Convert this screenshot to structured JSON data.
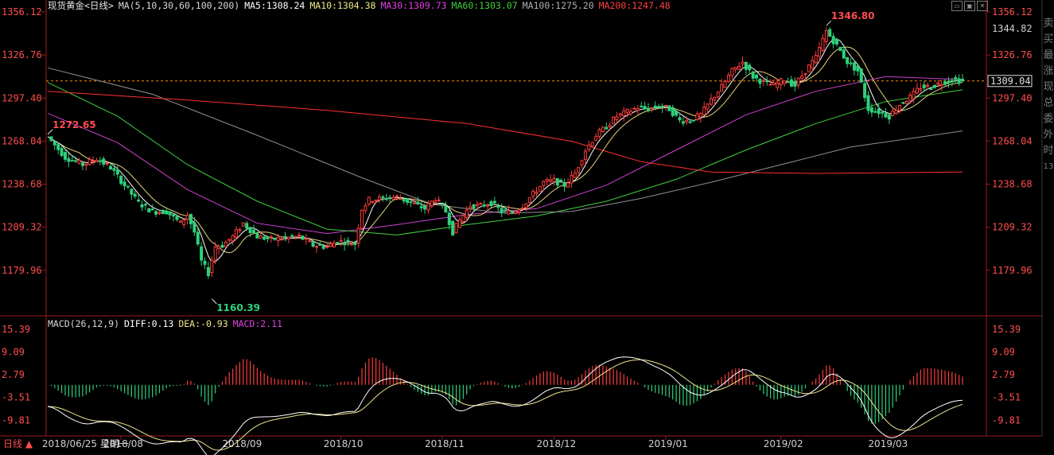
{
  "header": {
    "title": "现货黄金<日线>",
    "ma_label": "MA(5,10,30,60,100,200)",
    "ma_values": [
      {
        "label": "MA5:1308.24",
        "color": "#ffffff"
      },
      {
        "label": "MA10:1304.38",
        "color": "#f0e68c"
      },
      {
        "label": "MA30:1309.73",
        "color": "#e040e0"
      },
      {
        "label": "MA60:1303.07",
        "color": "#40d040"
      },
      {
        "label": "MA100:1275.20",
        "color": "#a0a0a0"
      },
      {
        "label": "MA200:1247.48",
        "color": "#ff4040"
      }
    ]
  },
  "macd_header": {
    "label": "MACD(26,12,9)",
    "diff": "DIFF:0.13",
    "dea": "DEA:-0.93",
    "macd": "MACD:2.11"
  },
  "footer": {
    "period": "日线 ▲",
    "cursor_date": "2018/06/25 星期一"
  },
  "sidebar": {
    "chars": [
      "卖",
      "买",
      "最",
      "涨",
      "现",
      "总",
      "委",
      "外",
      "时",
      "13"
    ]
  },
  "icons": [
    "window-icon",
    "restore-icon",
    "close-icon"
  ],
  "colors": {
    "up": "#ff3c3c",
    "down": "#2fd07a",
    "axis": "#9b1b1b",
    "price_text": "#ff4d4d",
    "current_line": "#ff8c00"
  },
  "chart_data": {
    "type": "candlestick",
    "title": "现货黄金<日线>",
    "price_axis": {
      "ticks": [
        "1356.12",
        "1326.76",
        "1297.40",
        "1268.04",
        "1238.68",
        "1209.32",
        "1179.96"
      ],
      "min": 1150,
      "max": 1356.12
    },
    "current_price": {
      "label": "1309.04",
      "value": 1309.04
    },
    "mark_price": {
      "label": "1344.82",
      "value": 1344.82
    },
    "annotations": [
      {
        "label": "1272.65",
        "value": 1272.65,
        "type": "high"
      },
      {
        "label": "1160.39",
        "value": 1160.39,
        "type": "low"
      },
      {
        "label": "1346.80",
        "value": 1346.8,
        "type": "high"
      }
    ],
    "x_ticks": [
      "2018/08",
      "2018/09",
      "2018/10",
      "2018/11",
      "2018/12",
      "2019/01",
      "2019/02",
      "2019/03"
    ],
    "price_path": [
      [
        0,
        1271
      ],
      [
        5,
        1257
      ],
      [
        10,
        1252
      ],
      [
        14,
        1256
      ],
      [
        18,
        1250
      ],
      [
        22,
        1238
      ],
      [
        26,
        1226
      ],
      [
        30,
        1220
      ],
      [
        34,
        1220
      ],
      [
        38,
        1212
      ],
      [
        40,
        1218
      ],
      [
        42,
        1206
      ],
      [
        44,
        1186
      ],
      [
        46,
        1178
      ],
      [
        48,
        1196
      ],
      [
        50,
        1197
      ],
      [
        53,
        1203
      ],
      [
        56,
        1212
      ],
      [
        60,
        1203
      ],
      [
        64,
        1201
      ],
      [
        68,
        1202
      ],
      [
        72,
        1203
      ],
      [
        76,
        1197
      ],
      [
        80,
        1196
      ],
      [
        83,
        1200
      ],
      [
        86,
        1199
      ],
      [
        88,
        1198
      ],
      [
        90,
        1222
      ],
      [
        92,
        1228
      ],
      [
        96,
        1229
      ],
      [
        100,
        1230
      ],
      [
        104,
        1226
      ],
      [
        108,
        1222
      ],
      [
        111,
        1229
      ],
      [
        114,
        1220
      ],
      [
        116,
        1206
      ],
      [
        118,
        1214
      ],
      [
        121,
        1224
      ],
      [
        124,
        1224
      ],
      [
        127,
        1226
      ],
      [
        130,
        1220
      ],
      [
        133,
        1219
      ],
      [
        136,
        1224
      ],
      [
        139,
        1232
      ],
      [
        142,
        1240
      ],
      [
        145,
        1241
      ],
      [
        148,
        1238
      ],
      [
        151,
        1246
      ],
      [
        154,
        1262
      ],
      [
        157,
        1272
      ],
      [
        160,
        1278
      ],
      [
        163,
        1285
      ],
      [
        166,
        1288
      ],
      [
        169,
        1291
      ],
      [
        172,
        1290
      ],
      [
        175,
        1292
      ],
      [
        178,
        1290
      ],
      [
        181,
        1282
      ],
      [
        184,
        1282
      ],
      [
        187,
        1286
      ],
      [
        190,
        1296
      ],
      [
        193,
        1305
      ],
      [
        196,
        1316
      ],
      [
        199,
        1322
      ],
      [
        202,
        1312
      ],
      [
        205,
        1308
      ],
      [
        208,
        1306
      ],
      [
        211,
        1310
      ],
      [
        214,
        1306
      ],
      [
        217,
        1316
      ],
      [
        220,
        1325
      ],
      [
        223,
        1343
      ],
      [
        226,
        1333
      ],
      [
        229,
        1322
      ],
      [
        232,
        1316
      ],
      [
        235,
        1290
      ],
      [
        238,
        1288
      ],
      [
        241,
        1285
      ],
      [
        244,
        1293
      ],
      [
        247,
        1298
      ],
      [
        250,
        1305
      ],
      [
        253,
        1305
      ],
      [
        256,
        1308
      ],
      [
        259,
        1310
      ],
      [
        262,
        1309
      ]
    ],
    "ma_series": [
      {
        "name": "MA30",
        "color": "#d040d0",
        "points": [
          [
            0,
            1287
          ],
          [
            20,
            1267
          ],
          [
            40,
            1235
          ],
          [
            60,
            1212
          ],
          [
            80,
            1205
          ],
          [
            100,
            1211
          ],
          [
            120,
            1218
          ],
          [
            140,
            1222
          ],
          [
            160,
            1238
          ],
          [
            180,
            1262
          ],
          [
            200,
            1286
          ],
          [
            220,
            1302
          ],
          [
            240,
            1312
          ],
          [
            262,
            1310
          ]
        ]
      },
      {
        "name": "MA60",
        "color": "#40d040",
        "points": [
          [
            0,
            1308
          ],
          [
            20,
            1285
          ],
          [
            40,
            1252
          ],
          [
            60,
            1227
          ],
          [
            80,
            1208
          ],
          [
            100,
            1204
          ],
          [
            120,
            1211
          ],
          [
            140,
            1217
          ],
          [
            160,
            1227
          ],
          [
            180,
            1242
          ],
          [
            200,
            1262
          ],
          [
            220,
            1280
          ],
          [
            240,
            1295
          ],
          [
            262,
            1303
          ]
        ]
      },
      {
        "name": "MA100",
        "color": "#909090",
        "points": [
          [
            0,
            1318
          ],
          [
            30,
            1300
          ],
          [
            60,
            1272
          ],
          [
            90,
            1243
          ],
          [
            110,
            1225
          ],
          [
            130,
            1219
          ],
          [
            150,
            1220
          ],
          [
            170,
            1229
          ],
          [
            190,
            1240
          ],
          [
            210,
            1252
          ],
          [
            230,
            1264
          ],
          [
            262,
            1275
          ]
        ]
      },
      {
        "name": "MA200",
        "color": "#ff3030",
        "points": [
          [
            0,
            1302
          ],
          [
            40,
            1296
          ],
          [
            80,
            1289
          ],
          [
            120,
            1280
          ],
          [
            150,
            1268
          ],
          [
            170,
            1254
          ],
          [
            190,
            1247
          ],
          [
            220,
            1246
          ],
          [
            262,
            1247
          ]
        ]
      }
    ],
    "macd_axis": {
      "ticks": [
        "15.39",
        "9.09",
        "2.79",
        "-3.51",
        "-9.81"
      ],
      "min": -13.5,
      "max": 15.39
    }
  }
}
